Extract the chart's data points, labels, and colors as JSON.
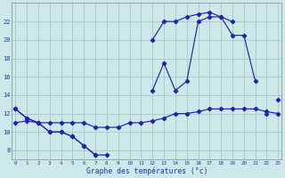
{
  "xlabel": "Graphe des températures (°c)",
  "bg_color": "#cce8e8",
  "grid_color": "#aacccc",
  "line_color": "#2222aa",
  "hours": [
    0,
    1,
    2,
    3,
    4,
    5,
    6,
    7,
    8,
    9,
    10,
    11,
    12,
    13,
    14,
    15,
    16,
    17,
    18,
    19,
    20,
    21,
    22,
    23
  ],
  "series1": [
    12.5,
    11.5,
    11.0,
    10.0,
    10.0,
    9.5,
    8.5,
    7.5,
    7.5,
    null,
    null,
    null,
    20.0,
    22.0,
    22.0,
    22.5,
    22.8,
    23.0,
    22.5,
    22.0,
    null,
    null,
    12.0,
    null
  ],
  "series2": [
    12.5,
    11.5,
    11.0,
    10.0,
    10.0,
    9.5,
    8.5,
    7.5,
    null,
    null,
    null,
    null,
    14.5,
    17.5,
    14.5,
    15.5,
    22.0,
    22.5,
    22.5,
    20.5,
    20.5,
    15.5,
    null,
    13.5
  ],
  "series3": [
    11.0,
    11.2,
    11.0,
    11.0,
    11.0,
    11.0,
    11.0,
    10.5,
    10.5,
    10.5,
    11.0,
    11.0,
    11.2,
    11.5,
    12.0,
    12.0,
    12.2,
    12.5,
    12.5,
    12.5,
    12.5,
    12.5,
    12.2,
    12.0
  ],
  "ylim": [
    7,
    24
  ],
  "yticks": [
    8,
    10,
    12,
    14,
    16,
    18,
    20,
    22
  ],
  "xlim": [
    -0.3,
    23.3
  ],
  "xticks": [
    0,
    1,
    2,
    3,
    4,
    5,
    6,
    7,
    8,
    9,
    10,
    11,
    12,
    13,
    14,
    15,
    16,
    17,
    18,
    19,
    20,
    21,
    22,
    23
  ]
}
